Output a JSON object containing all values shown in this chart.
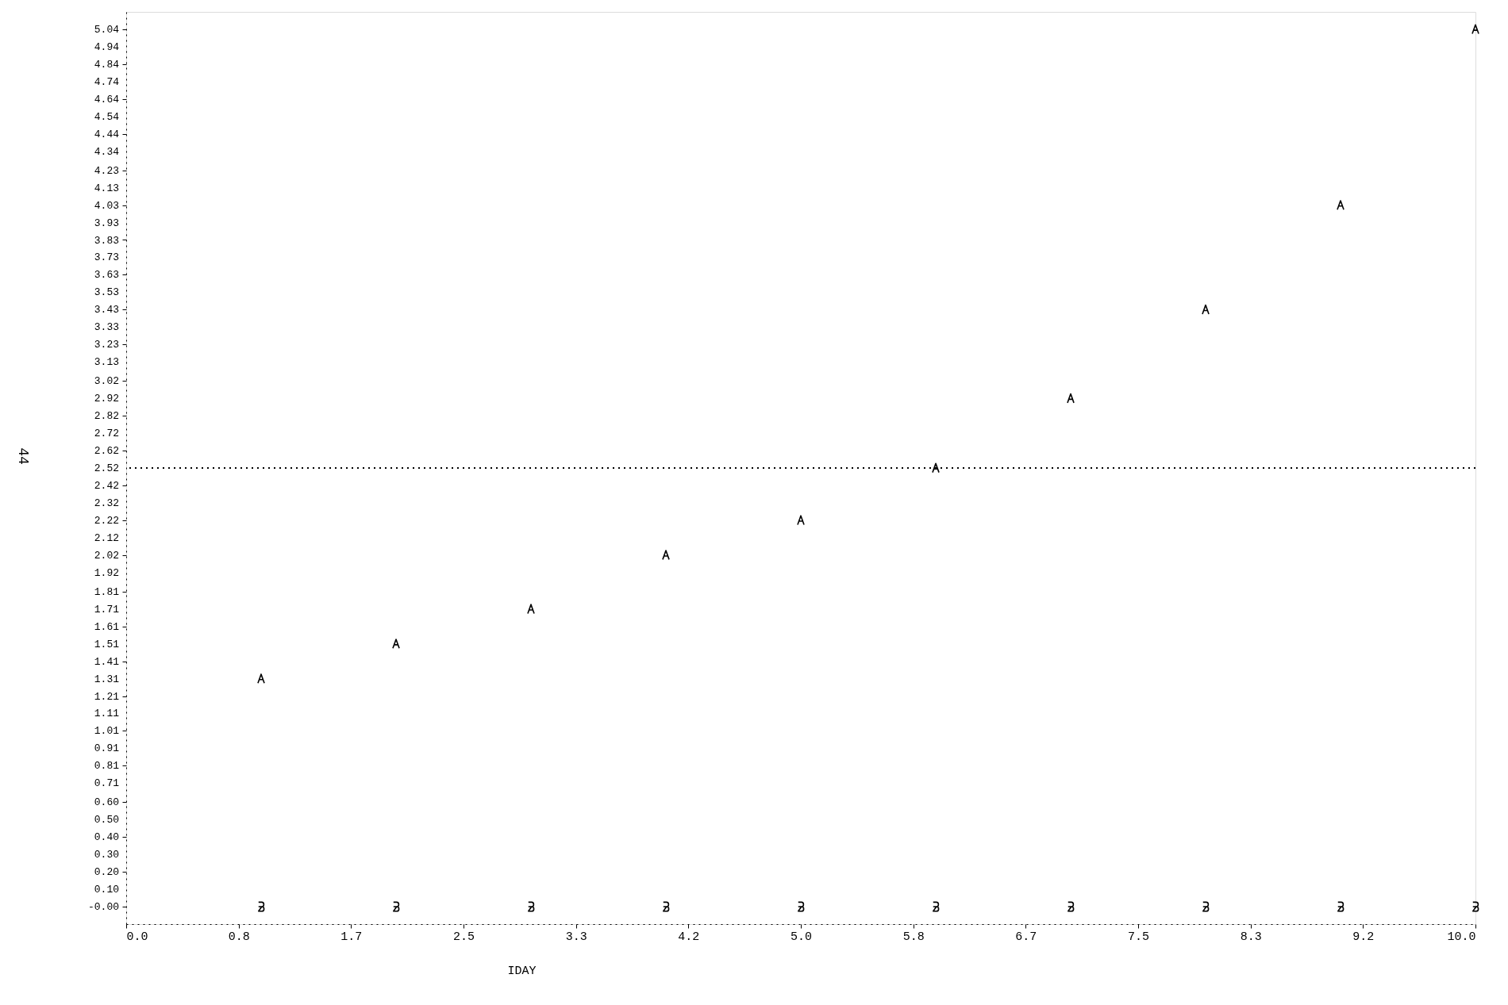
{
  "chart_data": {
    "type": "scatter",
    "xlabel": "IDAY",
    "annotations": [
      "44"
    ],
    "x": [
      1,
      2,
      3,
      4,
      5,
      6,
      7,
      8,
      9,
      10
    ],
    "series": [
      {
        "color": "#000000",
        "values": [
          1.31,
          1.51,
          1.71,
          2.02,
          2.22,
          2.52,
          2.92,
          3.43,
          4.03,
          5.04
        ]
      },
      {
        "color": "#000000",
        "values": [
          0,
          0,
          0,
          0,
          0,
          0,
          0,
          0,
          0,
          0
        ]
      }
    ],
    "xlim": [
      0,
      10
    ],
    "ylim": [
      -0.1,
      5.14
    ],
    "xticks": [
      {
        "value": 0,
        "label": "0.0"
      },
      {
        "value": 0.8333,
        "label": "0.8"
      },
      {
        "value": 1.6667,
        "label": "1.7"
      },
      {
        "value": 2.5,
        "label": "2.5"
      },
      {
        "value": 3.3333,
        "label": "3.3"
      },
      {
        "value": 4.1667,
        "label": "4.2"
      },
      {
        "value": 5,
        "label": "5.0"
      },
      {
        "value": 5.8333,
        "label": "5.8"
      },
      {
        "value": 6.6667,
        "label": "6.7"
      },
      {
        "value": 7.5,
        "label": "7.5"
      },
      {
        "value": 8.3333,
        "label": "8.3"
      },
      {
        "value": 9.1667,
        "label": "9.2"
      },
      {
        "value": 10,
        "label": "10.0"
      }
    ],
    "yticks": [
      {
        "value": 0,
        "label": "-0.00"
      },
      {
        "value": 0.1,
        "label": "0.10"
      },
      {
        "value": 0.2,
        "label": "0.20"
      },
      {
        "value": 0.3,
        "label": "0.30"
      },
      {
        "value": 0.4,
        "label": "0.40"
      },
      {
        "value": 0.5,
        "label": "0.50"
      },
      {
        "value": 0.6,
        "label": "0.60"
      },
      {
        "value": 0.71,
        "label": "0.71"
      },
      {
        "value": 0.81,
        "label": "0.81"
      },
      {
        "value": 0.91,
        "label": "0.91"
      },
      {
        "value": 1.01,
        "label": "1.01"
      },
      {
        "value": 1.11,
        "label": "1.11"
      },
      {
        "value": 1.21,
        "label": "1.21"
      },
      {
        "value": 1.31,
        "label": "1.31"
      },
      {
        "value": 1.41,
        "label": "1.41"
      },
      {
        "value": 1.51,
        "label": "1.51"
      },
      {
        "value": 1.61,
        "label": "1.61"
      },
      {
        "value": 1.71,
        "label": "1.71"
      },
      {
        "value": 1.81,
        "label": "1.81"
      },
      {
        "value": 1.92,
        "label": "1.92"
      },
      {
        "value": 2.02,
        "label": "2.02"
      },
      {
        "value": 2.12,
        "label": "2.12"
      },
      {
        "value": 2.22,
        "label": "2.22"
      },
      {
        "value": 2.32,
        "label": "2.32"
      },
      {
        "value": 2.42,
        "label": "2.42"
      },
      {
        "value": 2.52,
        "label": "2.52"
      },
      {
        "value": 2.62,
        "label": "2.62"
      },
      {
        "value": 2.72,
        "label": "2.72"
      },
      {
        "value": 2.82,
        "label": "2.82"
      },
      {
        "value": 2.92,
        "label": "2.92"
      },
      {
        "value": 3.02,
        "label": "3.02"
      },
      {
        "value": 3.13,
        "label": "3.13"
      },
      {
        "value": 3.23,
        "label": "3.23"
      },
      {
        "value": 3.33,
        "label": "3.33"
      },
      {
        "value": 3.43,
        "label": "3.43"
      },
      {
        "value": 3.53,
        "label": "3.53"
      },
      {
        "value": 3.63,
        "label": "3.63"
      },
      {
        "value": 3.73,
        "label": "3.73"
      },
      {
        "value": 3.83,
        "label": "3.83"
      },
      {
        "value": 3.93,
        "label": "3.93"
      },
      {
        "value": 4.03,
        "label": "4.03"
      },
      {
        "value": 4.13,
        "label": "4.13"
      },
      {
        "value": 4.23,
        "label": "4.23"
      },
      {
        "value": 4.34,
        "label": "4.34"
      },
      {
        "value": 4.44,
        "label": "4.44"
      },
      {
        "value": 4.54,
        "label": "4.54"
      },
      {
        "value": 4.64,
        "label": "4.64"
      },
      {
        "value": 4.74,
        "label": "4.74"
      },
      {
        "value": 4.84,
        "label": "4.84"
      },
      {
        "value": 4.94,
        "label": "4.94"
      },
      {
        "value": 5.04,
        "label": "5.04"
      }
    ],
    "ref_lines": [
      {
        "axis": "y",
        "value": 2.52,
        "line_style": "dotted",
        "color": "#000000"
      }
    ],
    "grid": false
  }
}
